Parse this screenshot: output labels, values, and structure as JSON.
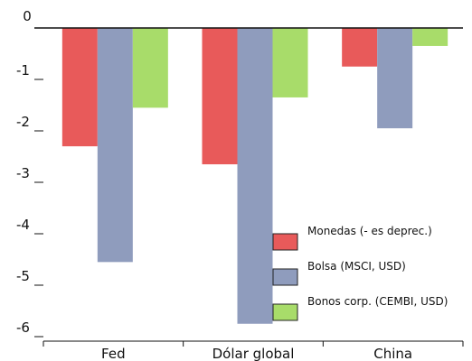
{
  "chart_data": {
    "type": "bar",
    "categories": [
      "Fed",
      "Dólar global",
      "China"
    ],
    "series": [
      {
        "name": "Monedas (- es deprec.)",
        "color": "#e85a5a",
        "values": [
          -2.3,
          -2.65,
          -0.75
        ]
      },
      {
        "name": "Bolsa (MSCI, USD)",
        "color": "#8f9cbd",
        "values": [
          -4.55,
          -5.75,
          -1.95
        ]
      },
      {
        "name": "Bonos corp. (CEMBI, USD)",
        "color": "#a8dc6a",
        "values": [
          -1.55,
          -1.35,
          -0.35
        ]
      }
    ],
    "ylim": [
      -6,
      0
    ],
    "yticks": [
      "0",
      "-1",
      "-2",
      "-3",
      "-4",
      "-5",
      "-6"
    ],
    "legend_position": "lower-right",
    "grid": false
  }
}
